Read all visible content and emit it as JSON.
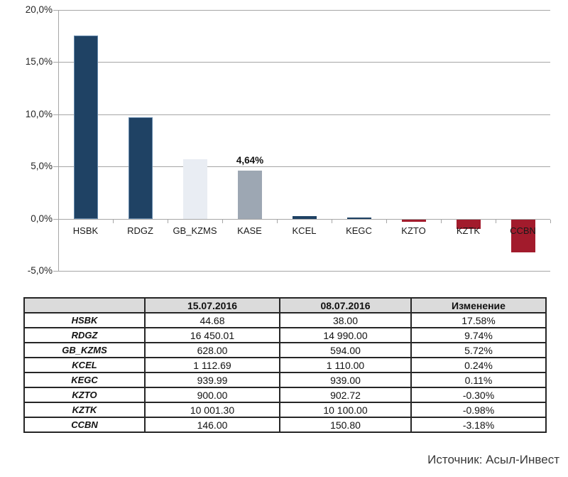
{
  "chart_data": {
    "type": "bar",
    "title": "",
    "xlabel": "",
    "ylabel": "",
    "categories": [
      "HSBK",
      "RDGZ",
      "GB_KZMS",
      "KASE",
      "KCEL",
      "KEGC",
      "KZTO",
      "KZTK",
      "CCBN"
    ],
    "values": [
      17.58,
      9.74,
      5.72,
      4.64,
      0.24,
      0.11,
      -0.3,
      -0.98,
      -3.18
    ],
    "bar_color_keys": [
      "navy",
      "navy",
      "light_gray",
      "mid_gray",
      "navy",
      "navy",
      "dark_red",
      "dark_red",
      "dark_red"
    ],
    "colors": {
      "navy": "#1f4264",
      "light_gray": "#e9edf3",
      "mid_gray": "#9da7b3",
      "dark_red": "#a21b2c"
    },
    "data_label": {
      "category": "KASE",
      "text": "4,64%"
    },
    "y_axis": {
      "min": -5,
      "max": 20,
      "step": 5,
      "tick_labels": [
        "20,0%",
        "15,0%",
        "10,0%",
        "5,0%",
        "0,0%",
        "-5,0%"
      ],
      "decimal_separator": "comma"
    },
    "grid": true,
    "legend": "none",
    "gridline_color": "#a6a6a6",
    "axis_text_color": "#262626"
  },
  "table": {
    "headers": [
      "",
      "15.07.2016",
      "08.07.2016",
      "Изменение"
    ],
    "rows": [
      [
        "HSBK",
        "44.68",
        "38.00",
        "17.58%"
      ],
      [
        "RDGZ",
        "16 450.01",
        "14 990.00",
        "9.74%"
      ],
      [
        "GB_KZMS",
        "628.00",
        "594.00",
        "5.72%"
      ],
      [
        "KCEL",
        "1 112.69",
        "1 110.00",
        "0.24%"
      ],
      [
        "KEGC",
        "939.99",
        "939.00",
        "0.11%"
      ],
      [
        "KZTO",
        "900.00",
        "902.72",
        "-0.30%"
      ],
      [
        "KZTK",
        "10 001.30",
        "10 100.00",
        "-0.98%"
      ],
      [
        "CCBN",
        "146.00",
        "150.80",
        "-3.18%"
      ]
    ],
    "header_bg": "#dbdbdb",
    "border_color": "#262626"
  },
  "footer": {
    "source_label": "Источник: Асыл-Инвест"
  }
}
